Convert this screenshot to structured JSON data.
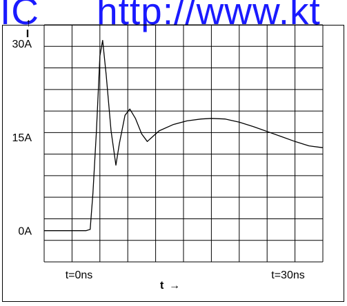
{
  "watermark": {
    "left": "IC",
    "right": "http://www.kt"
  },
  "chart_data": {
    "type": "line",
    "title": "",
    "xlabel": "t",
    "xlabel_arrow": "→",
    "ylabel": "I",
    "ylabel_arrow": "→",
    "grid": true,
    "x_tick_labels": [
      {
        "x": 0,
        "label": "t=0ns"
      },
      {
        "x": 30,
        "label": "t=30ns"
      }
    ],
    "y_tick_labels": [
      {
        "y": 0,
        "label": "0A"
      },
      {
        "y": 15,
        "label": "15A"
      },
      {
        "y": 30,
        "label": "30A"
      }
    ],
    "xlim": [
      -5,
      35
    ],
    "ylim": [
      -5,
      33
    ],
    "series": [
      {
        "color": "#000000",
        "points": [
          [
            -5,
            0.0
          ],
          [
            -2,
            0.0
          ],
          [
            1.0,
            0.0
          ],
          [
            1.6,
            0.2
          ],
          [
            2.0,
            6.0
          ],
          [
            2.5,
            16.0
          ],
          [
            3.0,
            28.0
          ],
          [
            3.4,
            30.5
          ],
          [
            3.9,
            25.0
          ],
          [
            4.6,
            16.0
          ],
          [
            5.3,
            10.5
          ],
          [
            5.8,
            14.0
          ],
          [
            6.6,
            18.5
          ],
          [
            7.3,
            19.5
          ],
          [
            8.1,
            18.0
          ],
          [
            9.0,
            15.5
          ],
          [
            9.8,
            14.3
          ],
          [
            10.5,
            15.0
          ],
          [
            11.5,
            16.0
          ],
          [
            13.5,
            17.0
          ],
          [
            15.5,
            17.6
          ],
          [
            17.5,
            17.9
          ],
          [
            19.0,
            18.0
          ],
          [
            21.0,
            17.9
          ],
          [
            23.0,
            17.4
          ],
          [
            25.0,
            16.7
          ],
          [
            27.0,
            15.9
          ],
          [
            29.0,
            15.1
          ],
          [
            31.0,
            14.3
          ],
          [
            33.0,
            13.6
          ],
          [
            35.0,
            13.3
          ]
        ]
      }
    ]
  }
}
